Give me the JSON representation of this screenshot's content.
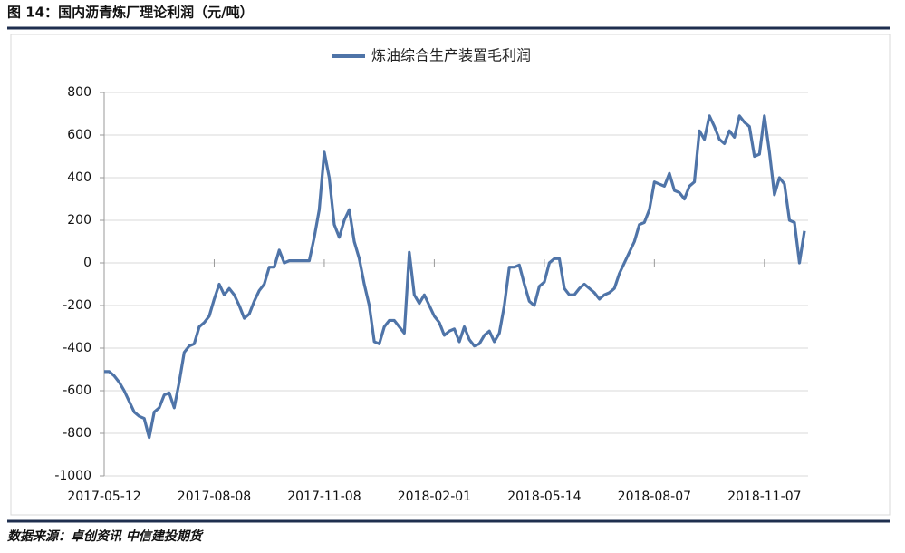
{
  "chart_data": {
    "type": "line",
    "title": "图 14：国内沥青炼厂理论利润（元/吨）",
    "source": "数据来源：卓创资讯 中信建投期货",
    "categories": [
      "2017-05-12",
      null,
      null,
      null,
      null,
      null,
      null,
      null,
      null,
      null,
      null,
      null,
      null,
      null,
      null,
      null,
      null,
      null,
      null,
      null,
      null,
      null,
      "2017-08-08",
      null,
      null,
      null,
      null,
      null,
      null,
      null,
      null,
      null,
      null,
      null,
      null,
      null,
      null,
      null,
      null,
      null,
      null,
      null,
      null,
      null,
      "2017-11-08",
      null,
      null,
      null,
      null,
      null,
      null,
      null,
      null,
      null,
      null,
      null,
      null,
      null,
      null,
      null,
      null,
      null,
      null,
      null,
      null,
      null,
      "2018-02-01",
      null,
      null,
      null,
      null,
      null,
      null,
      null,
      null,
      null,
      null,
      null,
      null,
      null,
      null,
      null,
      null,
      null,
      null,
      null,
      null,
      null,
      "2018-05-14",
      null,
      null,
      null,
      null,
      null,
      null,
      null,
      null,
      null,
      null,
      null,
      null,
      null,
      null,
      null,
      null,
      null,
      null,
      null,
      null,
      null,
      "2018-08-07",
      null,
      null,
      null,
      null,
      null,
      null,
      null,
      null,
      null,
      null,
      null,
      null,
      null,
      null,
      null,
      null,
      null,
      null,
      null,
      null,
      null,
      "2018-11-07",
      null,
      null,
      null,
      null,
      null,
      null,
      null,
      null
    ],
    "series": [
      {
        "name": "炼油综合生产装置毛利润",
        "color": "#4f74a8",
        "values": [
          -510,
          -510,
          -530,
          -560,
          -600,
          -650,
          -700,
          -720,
          -730,
          -820,
          -700,
          -680,
          -620,
          -610,
          -680,
          -560,
          -420,
          -390,
          -380,
          -300,
          -280,
          -250,
          -170,
          -100,
          -150,
          -120,
          -150,
          -200,
          -260,
          -240,
          -180,
          -130,
          -100,
          -20,
          -20,
          60,
          0,
          10,
          10,
          10,
          10,
          10,
          120,
          250,
          520,
          400,
          180,
          120,
          200,
          250,
          100,
          20,
          -100,
          -200,
          -370,
          -380,
          -300,
          -270,
          -270,
          -300,
          -330,
          50,
          -150,
          -190,
          -150,
          -200,
          -250,
          -280,
          -340,
          -320,
          -310,
          -370,
          -300,
          -360,
          -390,
          -380,
          -340,
          -320,
          -370,
          -330,
          -200,
          -20,
          -20,
          -10,
          -100,
          -180,
          -200,
          -110,
          -90,
          0,
          20,
          20,
          -120,
          -150,
          -150,
          -120,
          -100,
          -120,
          -140,
          -170,
          -150,
          -140,
          -120,
          -50,
          0,
          50,
          100,
          180,
          190,
          250,
          380,
          370,
          360,
          420,
          340,
          330,
          300,
          360,
          380,
          620,
          580,
          690,
          640,
          580,
          560,
          620,
          590,
          690,
          660,
          640,
          500,
          510,
          690,
          520,
          320,
          400,
          370,
          200,
          190,
          0,
          150
        ]
      }
    ],
    "ylim": [
      -1000,
      800
    ],
    "yticks": [
      -1000,
      -800,
      -600,
      -400,
      -200,
      0,
      200,
      400,
      600,
      800
    ],
    "grid": true
  }
}
